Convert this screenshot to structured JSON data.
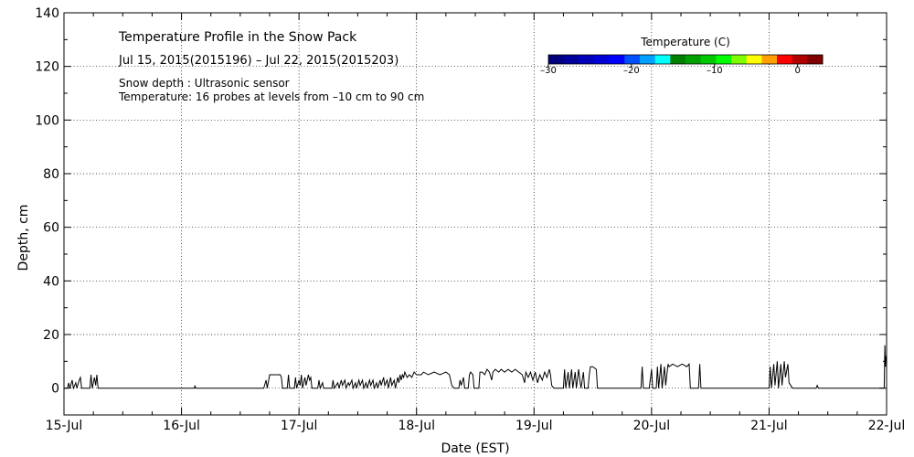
{
  "chart_data": {
    "type": "line",
    "title": "Temperature Profile in the Snow Pack",
    "subtitle": "Jul 15, 2015(2015196) – Jul 22, 2015(2015203)",
    "notes": [
      "Snow depth : Ultrasonic sensor",
      "Temperature: 16 probes at levels from –10 cm to 90 cm"
    ],
    "xlabel": "Date (EST)",
    "ylabel": "Depth, cm",
    "ylim": [
      -10,
      140
    ],
    "xlim": [
      0,
      7
    ],
    "x_ticks": [
      {
        "value": 0,
        "label": "15-Jul"
      },
      {
        "value": 1,
        "label": "16-Jul"
      },
      {
        "value": 2,
        "label": "17-Jul"
      },
      {
        "value": 3,
        "label": "18-Jul"
      },
      {
        "value": 4,
        "label": "19-Jul"
      },
      {
        "value": 5,
        "label": "20-Jul"
      },
      {
        "value": 6,
        "label": "21-Jul"
      },
      {
        "value": 7,
        "label": "22-Jul"
      }
    ],
    "y_ticks": [
      {
        "value": 0,
        "label": "0"
      },
      {
        "value": 20,
        "label": "20"
      },
      {
        "value": 40,
        "label": "40"
      },
      {
        "value": 60,
        "label": "60"
      },
      {
        "value": 80,
        "label": "80"
      },
      {
        "value": 100,
        "label": "100"
      },
      {
        "value": 120,
        "label": "120"
      },
      {
        "value": 140,
        "label": "140"
      }
    ],
    "grid": true,
    "colorbar": {
      "title": "Temperature (C)",
      "range": [
        -30,
        3
      ],
      "tick_labels": [
        {
          "value": -30,
          "label": "–30"
        },
        {
          "value": -20,
          "label": "–20"
        },
        {
          "value": -10,
          "label": "–10"
        },
        {
          "value": 0,
          "label": "0"
        }
      ],
      "colors": [
        "#00007f",
        "#00009a",
        "#0000b8",
        "#0000d6",
        "#0000ff",
        "#0050ff",
        "#00a0ff",
        "#00ffff",
        "#008000",
        "#00a000",
        "#00c800",
        "#00ff00",
        "#80ff00",
        "#ffff00",
        "#ffa000",
        "#ff0000",
        "#b00000",
        "#800000"
      ]
    },
    "series": [
      {
        "name": "Snow depth",
        "color": "#000000",
        "points": [
          [
            0.0,
            0
          ],
          [
            0.03,
            0
          ],
          [
            0.04,
            2
          ],
          [
            0.05,
            0
          ],
          [
            0.07,
            3
          ],
          [
            0.08,
            0
          ],
          [
            0.1,
            2
          ],
          [
            0.11,
            0
          ],
          [
            0.13,
            3
          ],
          [
            0.14,
            4
          ],
          [
            0.15,
            0
          ],
          [
            0.22,
            0
          ],
          [
            0.23,
            5
          ],
          [
            0.24,
            0
          ],
          [
            0.26,
            4
          ],
          [
            0.27,
            1
          ],
          [
            0.28,
            5
          ],
          [
            0.29,
            0
          ],
          [
            0.32,
            0
          ],
          [
            1.0,
            0
          ],
          [
            1.11,
            0
          ],
          [
            1.115,
            1
          ],
          [
            1.12,
            0
          ],
          [
            1.7,
            0
          ],
          [
            1.72,
            3
          ],
          [
            1.73,
            0
          ],
          [
            1.75,
            5
          ],
          [
            1.76,
            5
          ],
          [
            1.8,
            5
          ],
          [
            1.84,
            5
          ],
          [
            1.85,
            4
          ],
          [
            1.86,
            0
          ],
          [
            1.9,
            0
          ],
          [
            1.91,
            5
          ],
          [
            1.92,
            0
          ],
          [
            1.96,
            0
          ],
          [
            1.97,
            4
          ],
          [
            1.98,
            0
          ],
          [
            2.0,
            3
          ],
          [
            2.01,
            1
          ],
          [
            2.02,
            5
          ],
          [
            2.03,
            0
          ],
          [
            2.05,
            4
          ],
          [
            2.06,
            1
          ],
          [
            2.08,
            5
          ],
          [
            2.09,
            3
          ],
          [
            2.1,
            4
          ],
          [
            2.11,
            0
          ],
          [
            2.16,
            0
          ],
          [
            2.17,
            3
          ],
          [
            2.18,
            0
          ],
          [
            2.2,
            2
          ],
          [
            2.21,
            0
          ],
          [
            2.28,
            0
          ],
          [
            2.29,
            3
          ],
          [
            2.3,
            0
          ],
          [
            2.33,
            2
          ],
          [
            2.34,
            0
          ],
          [
            2.36,
            3
          ],
          [
            2.37,
            1
          ],
          [
            2.39,
            3
          ],
          [
            2.4,
            0
          ],
          [
            2.42,
            2
          ],
          [
            2.43,
            1
          ],
          [
            2.45,
            3
          ],
          [
            2.46,
            0
          ],
          [
            2.48,
            2
          ],
          [
            2.49,
            0
          ],
          [
            2.51,
            3
          ],
          [
            2.52,
            1
          ],
          [
            2.54,
            3
          ],
          [
            2.55,
            0
          ],
          [
            2.57,
            2
          ],
          [
            2.58,
            0
          ],
          [
            2.6,
            3
          ],
          [
            2.61,
            1
          ],
          [
            2.63,
            3
          ],
          [
            2.64,
            0
          ],
          [
            2.66,
            2
          ],
          [
            2.67,
            0
          ],
          [
            2.69,
            3
          ],
          [
            2.7,
            1
          ],
          [
            2.72,
            4
          ],
          [
            2.73,
            1
          ],
          [
            2.75,
            3
          ],
          [
            2.76,
            0
          ],
          [
            2.78,
            4
          ],
          [
            2.79,
            1
          ],
          [
            2.81,
            3
          ],
          [
            2.82,
            0
          ],
          [
            2.84,
            4
          ],
          [
            2.85,
            2
          ],
          [
            2.86,
            5
          ],
          [
            2.87,
            3
          ],
          [
            2.88,
            5
          ],
          [
            2.89,
            4
          ],
          [
            2.9,
            6
          ],
          [
            2.92,
            4
          ],
          [
            2.94,
            5
          ],
          [
            2.96,
            4
          ],
          [
            2.98,
            6
          ],
          [
            3.0,
            5
          ],
          [
            3.04,
            5
          ],
          [
            3.06,
            6
          ],
          [
            3.1,
            5
          ],
          [
            3.15,
            6
          ],
          [
            3.2,
            5
          ],
          [
            3.25,
            6
          ],
          [
            3.28,
            5
          ],
          [
            3.3,
            1
          ],
          [
            3.32,
            0
          ],
          [
            3.36,
            0
          ],
          [
            3.37,
            3
          ],
          [
            3.38,
            1
          ],
          [
            3.4,
            4
          ],
          [
            3.41,
            0
          ],
          [
            3.44,
            0
          ],
          [
            3.45,
            5
          ],
          [
            3.46,
            6
          ],
          [
            3.48,
            5
          ],
          [
            3.49,
            0
          ],
          [
            3.53,
            0
          ],
          [
            3.54,
            6
          ],
          [
            3.56,
            6
          ],
          [
            3.58,
            5
          ],
          [
            3.6,
            7
          ],
          [
            3.62,
            6
          ],
          [
            3.64,
            3
          ],
          [
            3.65,
            6
          ],
          [
            3.67,
            7
          ],
          [
            3.7,
            6
          ],
          [
            3.72,
            7
          ],
          [
            3.75,
            6
          ],
          [
            3.78,
            7
          ],
          [
            3.81,
            6
          ],
          [
            3.84,
            7
          ],
          [
            3.87,
            6
          ],
          [
            3.9,
            5
          ],
          [
            3.92,
            2
          ],
          [
            3.93,
            6
          ],
          [
            3.95,
            4
          ],
          [
            3.97,
            6
          ],
          [
            3.99,
            3
          ],
          [
            4.01,
            6
          ],
          [
            4.03,
            2
          ],
          [
            4.05,
            5
          ],
          [
            4.07,
            3
          ],
          [
            4.09,
            6
          ],
          [
            4.11,
            4
          ],
          [
            4.13,
            7
          ],
          [
            4.14,
            5
          ],
          [
            4.15,
            1
          ],
          [
            4.17,
            0
          ],
          [
            4.25,
            0
          ],
          [
            4.26,
            7
          ],
          [
            4.27,
            0
          ],
          [
            4.29,
            6
          ],
          [
            4.3,
            0
          ],
          [
            4.32,
            7
          ],
          [
            4.33,
            0
          ],
          [
            4.35,
            6
          ],
          [
            4.36,
            0
          ],
          [
            4.38,
            7
          ],
          [
            4.39,
            3
          ],
          [
            4.4,
            0
          ],
          [
            4.42,
            6
          ],
          [
            4.43,
            0
          ],
          [
            4.46,
            0
          ],
          [
            4.47,
            5
          ],
          [
            4.48,
            8
          ],
          [
            4.5,
            8
          ],
          [
            4.53,
            7
          ],
          [
            4.54,
            0
          ],
          [
            4.6,
            0
          ],
          [
            4.91,
            0
          ],
          [
            4.92,
            8
          ],
          [
            4.93,
            0
          ],
          [
            4.98,
            0
          ],
          [
            5.0,
            7
          ],
          [
            5.01,
            0
          ],
          [
            5.04,
            0
          ],
          [
            5.05,
            8
          ],
          [
            5.06,
            0
          ],
          [
            5.08,
            9
          ],
          [
            5.09,
            0
          ],
          [
            5.11,
            8
          ],
          [
            5.12,
            1
          ],
          [
            5.14,
            9
          ],
          [
            5.15,
            8
          ],
          [
            5.18,
            9
          ],
          [
            5.22,
            8
          ],
          [
            5.26,
            9
          ],
          [
            5.3,
            8
          ],
          [
            5.32,
            9
          ],
          [
            5.33,
            0
          ],
          [
            5.4,
            0
          ],
          [
            5.41,
            9
          ],
          [
            5.42,
            0
          ],
          [
            5.5,
            0
          ],
          [
            6.0,
            0
          ],
          [
            6.01,
            8
          ],
          [
            6.02,
            0
          ],
          [
            6.04,
            9
          ],
          [
            6.05,
            1
          ],
          [
            6.07,
            10
          ],
          [
            6.08,
            0
          ],
          [
            6.1,
            9
          ],
          [
            6.11,
            1
          ],
          [
            6.13,
            10
          ],
          [
            6.14,
            4
          ],
          [
            6.16,
            9
          ],
          [
            6.17,
            2
          ],
          [
            6.2,
            0
          ],
          [
            6.4,
            0
          ],
          [
            6.41,
            1
          ],
          [
            6.42,
            0
          ],
          [
            6.98,
            0
          ],
          [
            6.985,
            16
          ],
          [
            6.99,
            8
          ],
          [
            6.995,
            12
          ],
          [
            7.0,
            10
          ]
        ]
      }
    ]
  }
}
